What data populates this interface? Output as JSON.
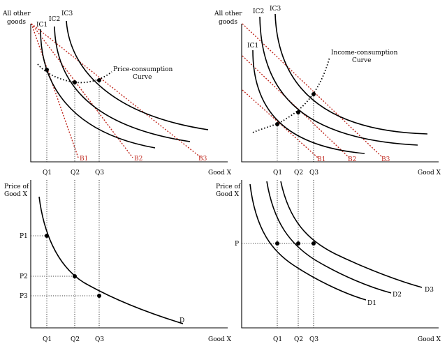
{
  "panels": {
    "top_left": {
      "y_axis_label_line1": "All other",
      "y_axis_label_line2": "goods",
      "x_axis_label": "Good X",
      "indifference_curves": [
        "IC1",
        "IC2",
        "IC3"
      ],
      "budget_lines": [
        "B1",
        "B2",
        "B3"
      ],
      "path_label_line1": "Price-consumption",
      "path_label_line2": "Curve",
      "quantities": [
        "Q1",
        "Q2",
        "Q3"
      ]
    },
    "top_right": {
      "y_axis_label_line1": "All other",
      "y_axis_label_line2": "goods",
      "x_axis_label": "Good X",
      "indifference_curves": [
        "IC1",
        "IC2",
        "IC3"
      ],
      "budget_lines": [
        "B1",
        "B2",
        "B3"
      ],
      "path_label_line1": "Income-consumption",
      "path_label_line2": "Curve",
      "quantities": [
        "Q1",
        "Q2",
        "Q3"
      ]
    },
    "bottom_left": {
      "y_axis_label_line1": "Price of",
      "y_axis_label_line2": "Good X",
      "x_axis_label": "Good X",
      "prices": [
        "P1",
        "P2",
        "P3"
      ],
      "demand_label": "D",
      "quantities": [
        "Q1",
        "Q2",
        "Q3"
      ]
    },
    "bottom_right": {
      "y_axis_label_line1": "Price of",
      "y_axis_label_line2": "Good X",
      "x_axis_label": "Good X",
      "price": "P",
      "demand_labels": [
        "D1",
        "D2",
        "D3"
      ],
      "quantities": [
        "Q1",
        "Q2",
        "Q3"
      ]
    }
  },
  "colors": {
    "budget_line": "#c0281e",
    "curves": "#000000"
  }
}
